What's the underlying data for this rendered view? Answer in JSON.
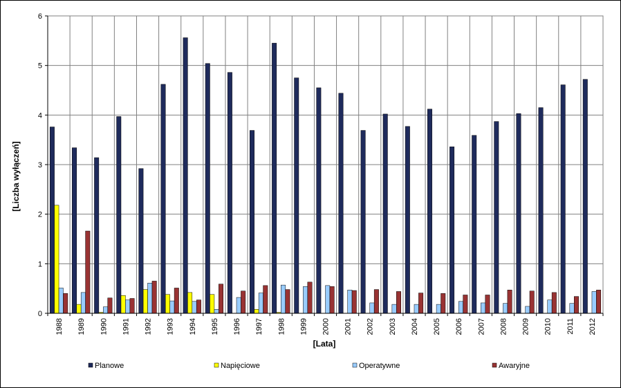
{
  "chart_data": {
    "type": "bar",
    "xlabel": "[Lata]",
    "ylabel": "[Liczba wyłączeń]",
    "ylim": [
      0,
      6
    ],
    "yticks": [
      0,
      1,
      2,
      3,
      4,
      5,
      6
    ],
    "grid": true,
    "legend_position": "bottom",
    "categories": [
      "1988",
      "1989",
      "1990",
      "1991",
      "1992",
      "1993",
      "1994",
      "1995",
      "1996",
      "1997",
      "1998",
      "1999",
      "2000",
      "2001",
      "2002",
      "2003",
      "2004",
      "2005",
      "2006",
      "2007",
      "2008",
      "2009",
      "2010",
      "2011",
      "2012"
    ],
    "series": [
      {
        "name": "Planowe",
        "color": "#1f2b5c",
        "values": [
          3.76,
          3.34,
          3.14,
          3.97,
          2.92,
          4.62,
          5.56,
          5.04,
          4.86,
          3.69,
          5.45,
          4.75,
          4.55,
          4.44,
          3.69,
          4.02,
          3.77,
          4.12,
          3.36,
          3.59,
          3.87,
          4.03,
          4.15,
          4.61,
          4.72
        ]
      },
      {
        "name": "Napięciowe",
        "color": "#ffff00",
        "values": [
          2.18,
          0.18,
          0.02,
          0.36,
          0.48,
          0.38,
          0.42,
          0.38,
          0.0,
          0.08,
          0.02,
          0.0,
          0.0,
          0.0,
          0.0,
          0.0,
          0.0,
          0.0,
          0.0,
          0.0,
          0.0,
          0.0,
          0.0,
          0.0,
          0.0
        ]
      },
      {
        "name": "Operatywne",
        "color": "#99ccff",
        "values": [
          0.51,
          0.42,
          0.13,
          0.27,
          0.61,
          0.25,
          0.24,
          0.08,
          0.32,
          0.41,
          0.57,
          0.54,
          0.56,
          0.47,
          0.21,
          0.18,
          0.18,
          0.18,
          0.24,
          0.21,
          0.2,
          0.14,
          0.27,
          0.2,
          0.44
        ]
      },
      {
        "name": "Awaryjne",
        "color": "#993333",
        "values": [
          0.4,
          1.66,
          0.31,
          0.3,
          0.65,
          0.51,
          0.27,
          0.59,
          0.45,
          0.56,
          0.48,
          0.63,
          0.54,
          0.46,
          0.48,
          0.44,
          0.41,
          0.4,
          0.37,
          0.37,
          0.47,
          0.45,
          0.42,
          0.34,
          0.47
        ]
      }
    ]
  }
}
